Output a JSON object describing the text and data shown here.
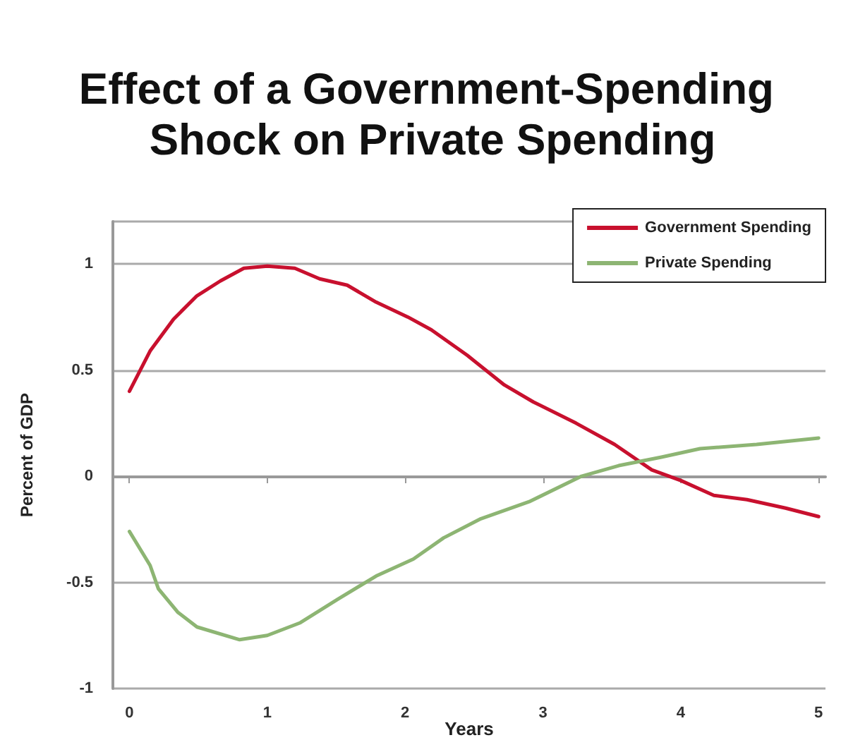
{
  "chart_data": {
    "type": "line",
    "title": "Effect of a Government-Spending Shock on Private Spending",
    "xlabel": "Years",
    "ylabel": "Percent of GDP",
    "series": [
      {
        "name": "Government Spending",
        "color": "#c8102e",
        "x": [
          0,
          0.15,
          0.32,
          0.49,
          0.66,
          0.83,
          1.0,
          1.2,
          1.38,
          1.58,
          1.79,
          2.02,
          2.19,
          2.45,
          2.72,
          2.93,
          3.24,
          3.52,
          3.79,
          4.0,
          4.24,
          4.48,
          4.76,
          5.0
        ],
        "values": [
          0.4,
          0.59,
          0.74,
          0.85,
          0.92,
          0.98,
          0.99,
          0.98,
          0.93,
          0.9,
          0.82,
          0.75,
          0.69,
          0.57,
          0.43,
          0.35,
          0.25,
          0.15,
          0.03,
          -0.02,
          -0.09,
          -0.11,
          -0.15,
          -0.19
        ]
      },
      {
        "name": "Private Spending",
        "color": "#8db573",
        "x": [
          0,
          0.15,
          0.21,
          0.35,
          0.49,
          0.8,
          1.0,
          1.24,
          1.51,
          1.79,
          2.06,
          2.28,
          2.55,
          2.9,
          3.28,
          3.55,
          3.86,
          4.14,
          4.55,
          5.0
        ],
        "values": [
          -0.26,
          -0.42,
          -0.53,
          -0.64,
          -0.71,
          -0.77,
          -0.75,
          -0.69,
          -0.58,
          -0.47,
          -0.39,
          -0.29,
          -0.2,
          -0.12,
          0.0,
          0.05,
          0.09,
          0.13,
          0.15,
          0.18
        ]
      }
    ],
    "xlim": [
      -0.12,
      5.05
    ],
    "xticks": [
      0,
      1,
      2,
      3,
      4,
      5
    ],
    "ylim": [
      -1,
      1.2
    ],
    "yticks": [
      -1,
      -0.5,
      0,
      0.5,
      1
    ],
    "grid": "y",
    "legend": "top right",
    "marker": "none",
    "line_style": "solid"
  }
}
